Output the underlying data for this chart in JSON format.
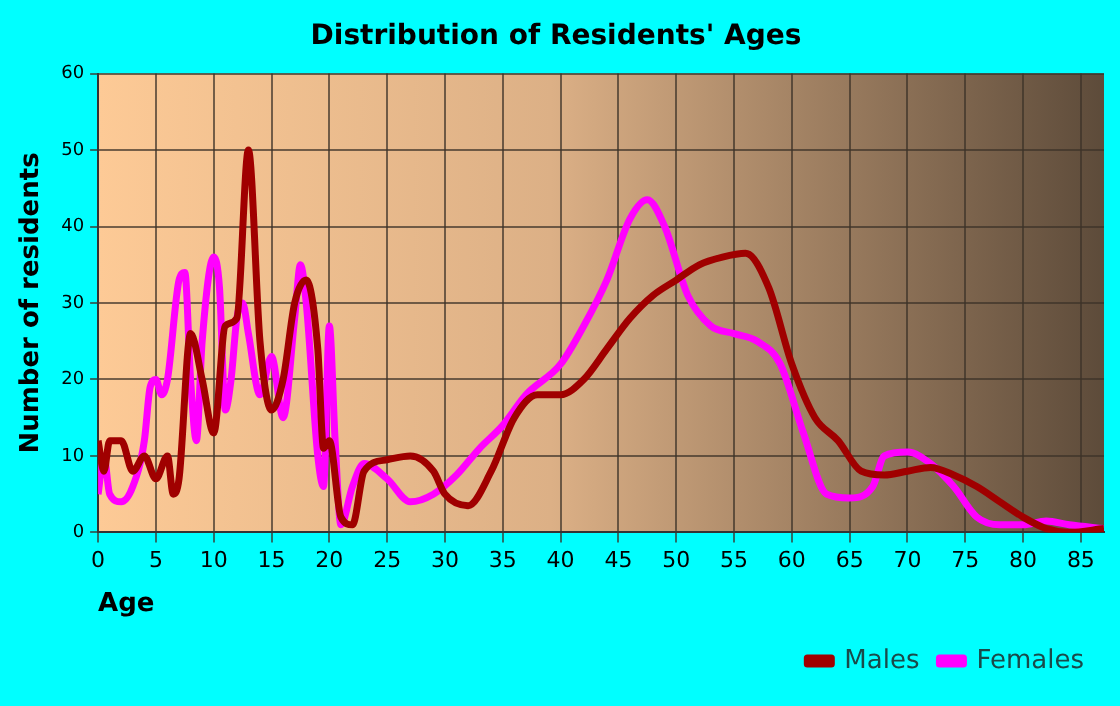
{
  "chart_data": {
    "type": "line",
    "title": "Distribution of Residents' Ages",
    "xlabel": "Age",
    "ylabel": "Number of residents",
    "xlim": [
      0,
      87
    ],
    "xticks": [
      0,
      5,
      10,
      15,
      20,
      25,
      30,
      35,
      40,
      45,
      50,
      55,
      60,
      65,
      70,
      75,
      80,
      85
    ],
    "ylim": [
      0,
      60
    ],
    "yticks": [
      0,
      10,
      20,
      30,
      40,
      50,
      60
    ],
    "grid": true,
    "legend": "bottom right",
    "marker": "none",
    "line_style": "solid",
    "series": [
      {
        "name": "Males",
        "color": "#a00000",
        "x": [
          0,
          0.5,
          1,
          2,
          3,
          4,
          5,
          6,
          6.5,
          7,
          8,
          9,
          10,
          11,
          12,
          13,
          14,
          15,
          16,
          17,
          18,
          19,
          19.5,
          20,
          21,
          22,
          23,
          25,
          27,
          29,
          30,
          32,
          34,
          36,
          38,
          40,
          42,
          44,
          46,
          48,
          50,
          52,
          54,
          56,
          58,
          60,
          62,
          64,
          66,
          68,
          70,
          72,
          74,
          76,
          78,
          80,
          82,
          84,
          87
        ],
        "values": [
          12,
          8,
          12,
          12,
          8,
          10,
          7,
          10,
          5,
          7,
          26,
          20,
          13,
          27,
          28,
          50,
          25,
          16,
          20,
          30,
          33,
          24,
          11,
          12,
          2,
          1,
          8,
          9.5,
          10,
          8,
          5,
          3.5,
          8,
          15,
          18,
          18,
          20,
          24,
          28,
          31,
          33,
          35,
          36,
          36.5,
          32,
          22,
          15,
          12,
          8,
          7.5,
          8,
          8.5,
          7.5,
          6,
          4,
          2,
          0.5,
          0,
          0.5
        ]
      },
      {
        "name": "Females",
        "color": "#ff00ff",
        "x": [
          0,
          0.5,
          1,
          2,
          3,
          4,
          4.5,
          5,
          5.5,
          6,
          7,
          7.5,
          8,
          8.5,
          9,
          10,
          10.5,
          11,
          11.5,
          12,
          12.5,
          13,
          14,
          15,
          16,
          17,
          17.5,
          18,
          19,
          19.5,
          20,
          20.5,
          21,
          22,
          23,
          25,
          27,
          29,
          31,
          33,
          35,
          37,
          40,
          42,
          44,
          46,
          47.5,
          49,
          51,
          53,
          55,
          57,
          59,
          61,
          63,
          65,
          67,
          68,
          70,
          72,
          74,
          76,
          78,
          80,
          82,
          84,
          87
        ],
        "values": [
          5,
          10,
          5,
          4,
          6,
          12,
          19,
          20,
          18,
          20,
          33,
          34,
          20,
          12,
          25,
          36,
          32,
          16,
          20,
          28,
          30,
          26,
          18,
          23,
          15,
          28,
          35,
          30,
          10,
          6,
          27,
          12,
          1,
          6,
          9,
          7,
          4,
          5,
          7.5,
          11,
          14,
          18,
          22,
          27,
          33,
          41,
          43.5,
          40,
          31,
          27,
          26,
          25,
          22,
          13,
          5,
          4.5,
          6,
          10,
          10.5,
          9,
          6,
          2,
          1,
          1,
          1.5,
          1,
          0.5
        ]
      }
    ]
  }
}
